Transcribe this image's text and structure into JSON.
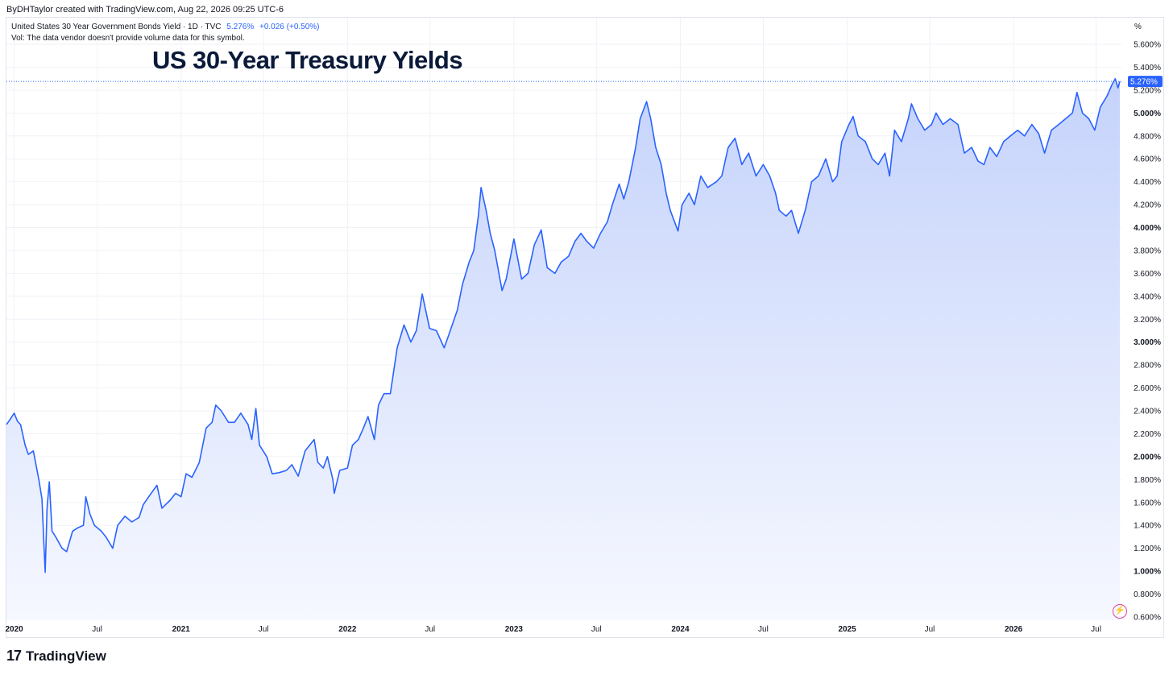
{
  "header": {
    "attribution": "ByDHTaylor created with TradingView.com, Aug 22, 2026 09:25 UTC-6"
  },
  "legend": {
    "symbol": "United States 30 Year Government Bonds Yield · 1D · TVC",
    "last_value": "5.276%",
    "change": "+0.026 (+0.50%)",
    "volume_note": "Vol: The data vendor doesn't provide volume data for this symbol."
  },
  "price_axis": {
    "unit": "%",
    "current_label": "5.276%"
  },
  "brand": {
    "name": "TradingView",
    "logo": "tradingview-logo"
  },
  "colors": {
    "line": "#2962ff",
    "fill_top": "#c5d3fb",
    "fill_bottom": "#f6f8ff",
    "grid": "#f0f2f7",
    "badge": "#2962ff"
  },
  "chart_data": {
    "type": "area",
    "title": "US 30-Year Treasury Yields",
    "xlabel": "",
    "ylabel": "",
    "ylim": [
      0.6,
      5.6
    ],
    "xlim": [
      "2019-12-15",
      "2026-08-22"
    ],
    "y_ticks": [
      {
        "value": 5.6,
        "label": "5.600%",
        "bold": false
      },
      {
        "value": 5.4,
        "label": "5.400%",
        "bold": false
      },
      {
        "value": 5.2,
        "label": "5.200%",
        "bold": false
      },
      {
        "value": 5.0,
        "label": "5.000%",
        "bold": true
      },
      {
        "value": 4.8,
        "label": "4.800%",
        "bold": false
      },
      {
        "value": 4.6,
        "label": "4.600%",
        "bold": false
      },
      {
        "value": 4.4,
        "label": "4.400%",
        "bold": false
      },
      {
        "value": 4.2,
        "label": "4.200%",
        "bold": false
      },
      {
        "value": 4.0,
        "label": "4.000%",
        "bold": true
      },
      {
        "value": 3.8,
        "label": "3.800%",
        "bold": false
      },
      {
        "value": 3.6,
        "label": "3.600%",
        "bold": false
      },
      {
        "value": 3.4,
        "label": "3.400%",
        "bold": false
      },
      {
        "value": 3.2,
        "label": "3.200%",
        "bold": false
      },
      {
        "value": 3.0,
        "label": "3.000%",
        "bold": true
      },
      {
        "value": 2.8,
        "label": "2.800%",
        "bold": false
      },
      {
        "value": 2.6,
        "label": "2.600%",
        "bold": false
      },
      {
        "value": 2.4,
        "label": "2.400%",
        "bold": false
      },
      {
        "value": 2.2,
        "label": "2.200%",
        "bold": false
      },
      {
        "value": 2.0,
        "label": "2.000%",
        "bold": true
      },
      {
        "value": 1.8,
        "label": "1.800%",
        "bold": false
      },
      {
        "value": 1.6,
        "label": "1.600%",
        "bold": false
      },
      {
        "value": 1.4,
        "label": "1.400%",
        "bold": false
      },
      {
        "value": 1.2,
        "label": "1.200%",
        "bold": false
      },
      {
        "value": 1.0,
        "label": "1.000%",
        "bold": true
      },
      {
        "value": 0.8,
        "label": "0.800%",
        "bold": false
      },
      {
        "value": 0.6,
        "label": "0.600%",
        "bold": false
      }
    ],
    "x_ticks": [
      {
        "date": "2020-01-01",
        "label": "2020",
        "bold": true
      },
      {
        "date": "2020-07-01",
        "label": "Jul",
        "bold": false
      },
      {
        "date": "2021-01-01",
        "label": "2021",
        "bold": true
      },
      {
        "date": "2021-07-01",
        "label": "Jul",
        "bold": false
      },
      {
        "date": "2022-01-01",
        "label": "2022",
        "bold": true
      },
      {
        "date": "2022-07-01",
        "label": "Jul",
        "bold": false
      },
      {
        "date": "2023-01-01",
        "label": "2023",
        "bold": true
      },
      {
        "date": "2023-07-01",
        "label": "Jul",
        "bold": false
      },
      {
        "date": "2024-01-01",
        "label": "2024",
        "bold": true
      },
      {
        "date": "2024-07-01",
        "label": "Jul",
        "bold": false
      },
      {
        "date": "2025-01-01",
        "label": "2025",
        "bold": true
      },
      {
        "date": "2025-07-01",
        "label": "Jul",
        "bold": false
      },
      {
        "date": "2026-01-01",
        "label": "2026",
        "bold": true
      },
      {
        "date": "2026-07-01",
        "label": "Jul",
        "bold": false
      }
    ],
    "series": [
      {
        "values": [
          [
            "2019-12-15",
            2.28
          ],
          [
            "2019-12-22",
            2.32
          ],
          [
            "2020-01-01",
            2.38
          ],
          [
            "2020-01-08",
            2.31
          ],
          [
            "2020-01-15",
            2.28
          ],
          [
            "2020-01-25",
            2.1
          ],
          [
            "2020-02-01",
            2.02
          ],
          [
            "2020-02-12",
            2.05
          ],
          [
            "2020-02-24",
            1.8
          ],
          [
            "2020-03-02",
            1.63
          ],
          [
            "2020-03-06",
            1.25
          ],
          [
            "2020-03-09",
            0.99
          ],
          [
            "2020-03-13",
            1.55
          ],
          [
            "2020-03-18",
            1.78
          ],
          [
            "2020-03-24",
            1.35
          ],
          [
            "2020-04-01",
            1.3
          ],
          [
            "2020-04-15",
            1.2
          ],
          [
            "2020-04-25",
            1.17
          ],
          [
            "2020-05-08",
            1.35
          ],
          [
            "2020-05-20",
            1.38
          ],
          [
            "2020-06-01",
            1.4
          ],
          [
            "2020-06-06",
            1.65
          ],
          [
            "2020-06-15",
            1.5
          ],
          [
            "2020-06-25",
            1.4
          ],
          [
            "2020-07-10",
            1.35
          ],
          [
            "2020-07-20",
            1.3
          ],
          [
            "2020-08-04",
            1.2
          ],
          [
            "2020-08-15",
            1.4
          ],
          [
            "2020-08-31",
            1.48
          ],
          [
            "2020-09-15",
            1.43
          ],
          [
            "2020-10-01",
            1.47
          ],
          [
            "2020-10-10",
            1.58
          ],
          [
            "2020-10-22",
            1.65
          ],
          [
            "2020-11-09",
            1.75
          ],
          [
            "2020-11-20",
            1.55
          ],
          [
            "2020-12-08",
            1.62
          ],
          [
            "2020-12-20",
            1.68
          ],
          [
            "2021-01-01",
            1.65
          ],
          [
            "2021-01-12",
            1.85
          ],
          [
            "2021-01-25",
            1.82
          ],
          [
            "2021-02-10",
            1.95
          ],
          [
            "2021-02-25",
            2.25
          ],
          [
            "2021-03-10",
            2.3
          ],
          [
            "2021-03-18",
            2.45
          ],
          [
            "2021-03-30",
            2.4
          ],
          [
            "2021-04-15",
            2.3
          ],
          [
            "2021-04-28",
            2.3
          ],
          [
            "2021-05-12",
            2.38
          ],
          [
            "2021-05-28",
            2.28
          ],
          [
            "2021-06-05",
            2.15
          ],
          [
            "2021-06-14",
            2.42
          ],
          [
            "2021-06-22",
            2.1
          ],
          [
            "2021-07-08",
            2.0
          ],
          [
            "2021-07-20",
            1.85
          ],
          [
            "2021-08-04",
            1.86
          ],
          [
            "2021-08-20",
            1.88
          ],
          [
            "2021-09-01",
            1.93
          ],
          [
            "2021-09-15",
            1.83
          ],
          [
            "2021-09-30",
            2.05
          ],
          [
            "2021-10-10",
            2.1
          ],
          [
            "2021-10-20",
            2.15
          ],
          [
            "2021-10-28",
            1.95
          ],
          [
            "2021-11-09",
            1.9
          ],
          [
            "2021-11-18",
            2.0
          ],
          [
            "2021-11-30",
            1.8
          ],
          [
            "2021-12-03",
            1.68
          ],
          [
            "2021-12-15",
            1.88
          ],
          [
            "2022-01-01",
            1.9
          ],
          [
            "2022-01-12",
            2.1
          ],
          [
            "2022-01-25",
            2.15
          ],
          [
            "2022-02-05",
            2.25
          ],
          [
            "2022-02-15",
            2.35
          ],
          [
            "2022-03-01",
            2.15
          ],
          [
            "2022-03-10",
            2.45
          ],
          [
            "2022-03-22",
            2.55
          ],
          [
            "2022-04-05",
            2.55
          ],
          [
            "2022-04-20",
            2.95
          ],
          [
            "2022-05-05",
            3.15
          ],
          [
            "2022-05-20",
            3.0
          ],
          [
            "2022-06-01",
            3.1
          ],
          [
            "2022-06-14",
            3.42
          ],
          [
            "2022-06-30",
            3.12
          ],
          [
            "2022-07-15",
            3.1
          ],
          [
            "2022-08-01",
            2.95
          ],
          [
            "2022-08-10",
            3.05
          ],
          [
            "2022-08-30",
            3.28
          ],
          [
            "2022-09-10",
            3.5
          ],
          [
            "2022-09-25",
            3.7
          ],
          [
            "2022-10-05",
            3.8
          ],
          [
            "2022-10-15",
            4.1
          ],
          [
            "2022-10-21",
            4.35
          ],
          [
            "2022-11-01",
            4.15
          ],
          [
            "2022-11-10",
            3.95
          ],
          [
            "2022-11-20",
            3.8
          ],
          [
            "2022-12-06",
            3.45
          ],
          [
            "2022-12-15",
            3.55
          ],
          [
            "2023-01-01",
            3.9
          ],
          [
            "2023-01-18",
            3.55
          ],
          [
            "2023-02-01",
            3.6
          ],
          [
            "2023-02-15",
            3.85
          ],
          [
            "2023-03-02",
            3.98
          ],
          [
            "2023-03-15",
            3.65
          ],
          [
            "2023-04-01",
            3.6
          ],
          [
            "2023-04-15",
            3.7
          ],
          [
            "2023-05-01",
            3.75
          ],
          [
            "2023-05-15",
            3.88
          ],
          [
            "2023-05-28",
            3.95
          ],
          [
            "2023-06-10",
            3.88
          ],
          [
            "2023-06-25",
            3.82
          ],
          [
            "2023-07-10",
            3.95
          ],
          [
            "2023-07-25",
            4.05
          ],
          [
            "2023-08-05",
            4.2
          ],
          [
            "2023-08-20",
            4.38
          ],
          [
            "2023-08-30",
            4.25
          ],
          [
            "2023-09-10",
            4.4
          ],
          [
            "2023-09-25",
            4.7
          ],
          [
            "2023-10-05",
            4.95
          ],
          [
            "2023-10-19",
            5.1
          ],
          [
            "2023-10-28",
            4.95
          ],
          [
            "2023-11-08",
            4.7
          ],
          [
            "2023-11-20",
            4.55
          ],
          [
            "2023-12-01",
            4.3
          ],
          [
            "2023-12-10",
            4.15
          ],
          [
            "2023-12-27",
            3.97
          ],
          [
            "2024-01-05",
            4.2
          ],
          [
            "2024-01-20",
            4.3
          ],
          [
            "2024-02-01",
            4.2
          ],
          [
            "2024-02-15",
            4.45
          ],
          [
            "2024-03-01",
            4.35
          ],
          [
            "2024-03-20",
            4.4
          ],
          [
            "2024-04-01",
            4.45
          ],
          [
            "2024-04-15",
            4.7
          ],
          [
            "2024-04-30",
            4.78
          ],
          [
            "2024-05-15",
            4.55
          ],
          [
            "2024-05-30",
            4.65
          ],
          [
            "2024-06-15",
            4.45
          ],
          [
            "2024-07-01",
            4.55
          ],
          [
            "2024-07-15",
            4.45
          ],
          [
            "2024-07-28",
            4.3
          ],
          [
            "2024-08-05",
            4.15
          ],
          [
            "2024-08-20",
            4.1
          ],
          [
            "2024-09-01",
            4.15
          ],
          [
            "2024-09-16",
            3.95
          ],
          [
            "2024-10-01",
            4.15
          ],
          [
            "2024-10-15",
            4.4
          ],
          [
            "2024-10-30",
            4.45
          ],
          [
            "2024-11-15",
            4.6
          ],
          [
            "2024-11-30",
            4.4
          ],
          [
            "2024-12-10",
            4.45
          ],
          [
            "2024-12-20",
            4.75
          ],
          [
            "2025-01-05",
            4.9
          ],
          [
            "2025-01-14",
            4.97
          ],
          [
            "2025-01-25",
            4.8
          ],
          [
            "2025-02-10",
            4.75
          ],
          [
            "2025-02-25",
            4.6
          ],
          [
            "2025-03-10",
            4.55
          ],
          [
            "2025-03-25",
            4.65
          ],
          [
            "2025-04-04",
            4.45
          ],
          [
            "2025-04-15",
            4.85
          ],
          [
            "2025-04-30",
            4.75
          ],
          [
            "2025-05-15",
            4.95
          ],
          [
            "2025-05-22",
            5.08
          ],
          [
            "2025-06-05",
            4.95
          ],
          [
            "2025-06-20",
            4.85
          ],
          [
            "2025-07-05",
            4.9
          ],
          [
            "2025-07-15",
            5.0
          ],
          [
            "2025-07-30",
            4.9
          ],
          [
            "2025-08-15",
            4.95
          ],
          [
            "2025-09-01",
            4.9
          ],
          [
            "2025-09-15",
            4.65
          ],
          [
            "2025-10-01",
            4.7
          ],
          [
            "2025-10-15",
            4.58
          ],
          [
            "2025-10-28",
            4.55
          ],
          [
            "2025-11-10",
            4.7
          ],
          [
            "2025-11-25",
            4.62
          ],
          [
            "2025-12-10",
            4.75
          ],
          [
            "2025-12-25",
            4.8
          ],
          [
            "2026-01-10",
            4.85
          ],
          [
            "2026-01-25",
            4.8
          ],
          [
            "2026-02-10",
            4.9
          ],
          [
            "2026-02-25",
            4.82
          ],
          [
            "2026-03-10",
            4.65
          ],
          [
            "2026-03-25",
            4.85
          ],
          [
            "2026-04-10",
            4.9
          ],
          [
            "2026-04-25",
            4.95
          ],
          [
            "2026-05-10",
            5.0
          ],
          [
            "2026-05-20",
            5.18
          ],
          [
            "2026-06-01",
            5.0
          ],
          [
            "2026-06-15",
            4.95
          ],
          [
            "2026-06-28",
            4.85
          ],
          [
            "2026-07-10",
            5.05
          ],
          [
            "2026-07-25",
            5.15
          ],
          [
            "2026-08-05",
            5.25
          ],
          [
            "2026-08-12",
            5.3
          ],
          [
            "2026-08-18",
            5.22
          ],
          [
            "2026-08-22",
            5.276
          ]
        ]
      }
    ],
    "last_value": 5.276,
    "grid": true,
    "legend": "none"
  }
}
